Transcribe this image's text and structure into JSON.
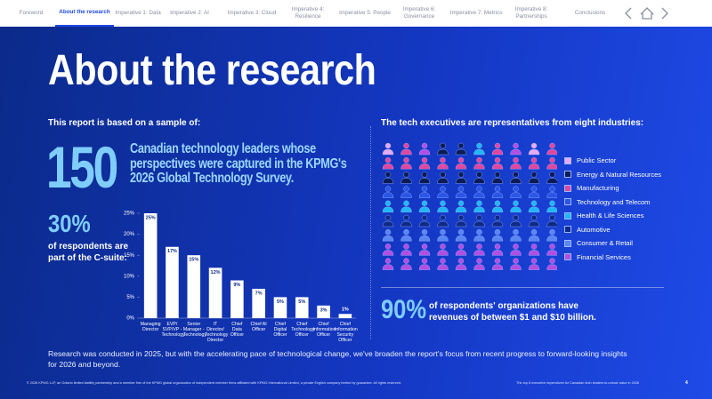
{
  "nav": {
    "items": [
      "Foreword",
      "About the research",
      "Imperative 1: Data",
      "Imperative 2: AI",
      "Imperative 3: Cloud",
      "Imperative 4: Resilience",
      "Imperative 5: People",
      "Imperative 6: Governance",
      "Imperative 7: Metrics",
      "Imperative 8: Partnerships",
      "Conclusions"
    ]
  },
  "title": "About the research",
  "left": {
    "heading": "This report is based on a sample of:",
    "big_number": "150",
    "big_text": "Canadian technology leaders whose perspectives were captured in the KPMG's 2026 Global Technology Survey.",
    "csuite_number": "30%",
    "csuite_text": "of respondents are part of the C-suite:"
  },
  "chart_data": {
    "type": "bar",
    "categories": [
      "Managing Director",
      "EVP/ SVP/VP - Technology",
      "Senior Manager - Technology",
      "IT Director/ Technology Director",
      "Chief Data Officer",
      "Chief AI Officer",
      "Chief Digital Officer",
      "Chief Technology Officer",
      "Chief Information Officer",
      "Chief Information Security Officer"
    ],
    "values": [
      25,
      17,
      15,
      12,
      9,
      7,
      5,
      5,
      3,
      1
    ],
    "value_labels": [
      "25%",
      "17%",
      "15%",
      "12%",
      "9%",
      "7%",
      "5%",
      "5%",
      "3%",
      "1%"
    ],
    "color": "#ffffff",
    "ylim": [
      0,
      25
    ],
    "yticks": [
      {
        "value": 0,
        "label": "0%"
      },
      {
        "value": 5,
        "label": "5%"
      },
      {
        "value": 10,
        "label": "10%"
      },
      {
        "value": 15,
        "label": "15%"
      },
      {
        "value": 20,
        "label": "20%"
      },
      {
        "value": 25,
        "label": "25%"
      }
    ]
  },
  "right": {
    "heading": "The tech executives are representatives from eight industries:",
    "industries": [
      {
        "name": "Public Sector",
        "color": "#e7a9f2"
      },
      {
        "name": "Energy & Natural Resources",
        "color": "#0a1b55"
      },
      {
        "name": "Manufacturing",
        "color": "#e0479e"
      },
      {
        "name": "Technology and Telecom",
        "color": "#2a55e6"
      },
      {
        "name": "Health & Life Sciences",
        "color": "#1fb8f5"
      },
      {
        "name": "Automotive",
        "color": "#0d2a86"
      },
      {
        "name": "Consumer & Retail",
        "color": "#5a86f2"
      },
      {
        "name": "Financial Services",
        "color": "#b24fe2"
      }
    ],
    "stat_number": "90%",
    "stat_text": "of respondents' organizations have revenues of between $1 and $10 billion."
  },
  "note": "Research was conducted in 2025, but with the accelerating pace of technological change, we've broaden the report's focus from recent progress to forward-looking insights for 2026 and beyond.",
  "footer": {
    "legal": "© 2026 KPMG LLP, an Ontario limited liability partnership and a member firm of the KPMG global organization of independent member firms affiliated with KPMG International Limited, a private English company limited by guarantee. All rights reserved.",
    "doc": "The top 8 executive imperatives for Canadian tech leaders to unlock value in 2026",
    "page": "4"
  }
}
